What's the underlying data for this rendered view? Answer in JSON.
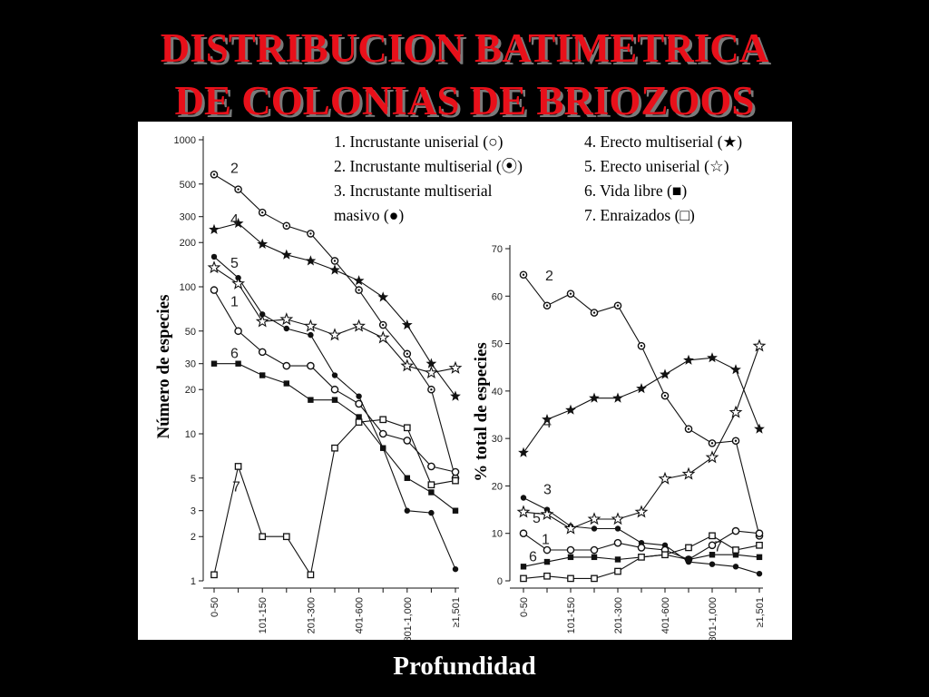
{
  "title_line1": "DISTRIBUCION BATIMETRICA",
  "title_line2": "DE COLONIAS DE BRIOZOOS",
  "x_title": "Profundidad",
  "legend": {
    "l1": "1. Incrustante uniserial (○)",
    "l2": "2. Incrustante multiserial (⦿)",
    "l3a": "3. Incrustante multiserial",
    "l3b": "masivo (●)",
    "l4": "4. Erecto multiserial (★)",
    "l5": "5. Erecto uniserial (☆)",
    "l6": "6. Vida libre (■)",
    "l7": "7. Enraizados (□)"
  },
  "colors": {
    "background": "#000000",
    "title": "#e8101a",
    "panel": "#ffffff",
    "ink": "#111111"
  },
  "chart_data": [
    {
      "type": "line",
      "ylabel": "Número de especies",
      "yscale": "log",
      "ylim": [
        1,
        1000
      ],
      "yticks": [
        1,
        2,
        3,
        5,
        10,
        20,
        30,
        50,
        100,
        200,
        300,
        500,
        1000
      ],
      "xtick_labels": [
        "0-50",
        "101-150",
        "201-300",
        "401-600",
        "801-1,000",
        "≥1,501"
      ],
      "x_positions": [
        0,
        1,
        2,
        3,
        4,
        5,
        6,
        7,
        8,
        9,
        10
      ],
      "series": [
        {
          "name": "2",
          "marker": "dotcircle",
          "values": [
            580,
            460,
            320,
            260,
            230,
            150,
            95,
            55,
            35,
            20,
            5
          ]
        },
        {
          "name": "4",
          "marker": "star",
          "values": [
            245,
            270,
            195,
            165,
            150,
            130,
            110,
            85,
            55,
            30,
            18
          ]
        },
        {
          "name": "3",
          "marker": "dot",
          "values": [
            160,
            115,
            65,
            52,
            47,
            25,
            18,
            8,
            3,
            2.9,
            1.2
          ]
        },
        {
          "name": "5",
          "marker": "openstar",
          "values": [
            135,
            105,
            58,
            60,
            54,
            47,
            54,
            45,
            29,
            26,
            28
          ]
        },
        {
          "name": "1",
          "marker": "circle",
          "values": [
            95,
            50,
            36,
            29,
            29,
            20,
            16,
            10,
            9,
            6,
            5.5
          ]
        },
        {
          "name": "6",
          "marker": "square",
          "values": [
            30,
            30,
            25,
            22,
            17,
            17,
            13,
            8,
            5,
            4,
            3
          ]
        },
        {
          "name": "7",
          "marker": "opensquare",
          "values": [
            1.1,
            6,
            2,
            2,
            1.1,
            8,
            12,
            12.5,
            11,
            4.5,
            4.8
          ]
        }
      ]
    },
    {
      "type": "line",
      "ylabel": "% total de especies",
      "ylim": [
        0,
        70
      ],
      "yticks": [
        0,
        10,
        20,
        30,
        40,
        50,
        60,
        70
      ],
      "xtick_labels": [
        "0-50",
        "101-150",
        "201-300",
        "401-600",
        "801-1,000",
        "≥1,501"
      ],
      "x_positions": [
        0,
        1,
        2,
        3,
        4,
        5,
        6,
        7,
        8,
        9,
        10
      ],
      "series": [
        {
          "name": "2",
          "marker": "dotcircle",
          "values": [
            64.5,
            58,
            60.5,
            56.5,
            58,
            49.5,
            39,
            32,
            29,
            29.5,
            9.5
          ]
        },
        {
          "name": "4",
          "marker": "star",
          "values": [
            27,
            34,
            36,
            38.5,
            38.5,
            40.5,
            43.5,
            46.5,
            47,
            44.5,
            32
          ]
        },
        {
          "name": "3",
          "marker": "dot",
          "values": [
            17.5,
            15,
            11.5,
            11,
            11,
            8,
            7.5,
            4,
            3.5,
            3,
            1.5
          ]
        },
        {
          "name": "5",
          "marker": "openstar",
          "values": [
            14.5,
            14,
            11,
            13,
            13,
            14.5,
            21.5,
            22.5,
            26,
            35.5,
            49.5
          ]
        },
        {
          "name": "1",
          "marker": "circle",
          "values": [
            10,
            6.5,
            6.5,
            6.5,
            8,
            7,
            6.5,
            4.5,
            7.5,
            10.5,
            10
          ]
        },
        {
          "name": "6",
          "marker": "square",
          "values": [
            3,
            4,
            5,
            5,
            4.5,
            5,
            5.5,
            4.5,
            5.5,
            5.5,
            5
          ]
        },
        {
          "name": "7",
          "marker": "opensquare",
          "values": [
            0.5,
            1,
            0.5,
            0.5,
            2,
            5,
            5.5,
            7,
            9.5,
            6.5,
            7.5
          ]
        }
      ]
    }
  ]
}
